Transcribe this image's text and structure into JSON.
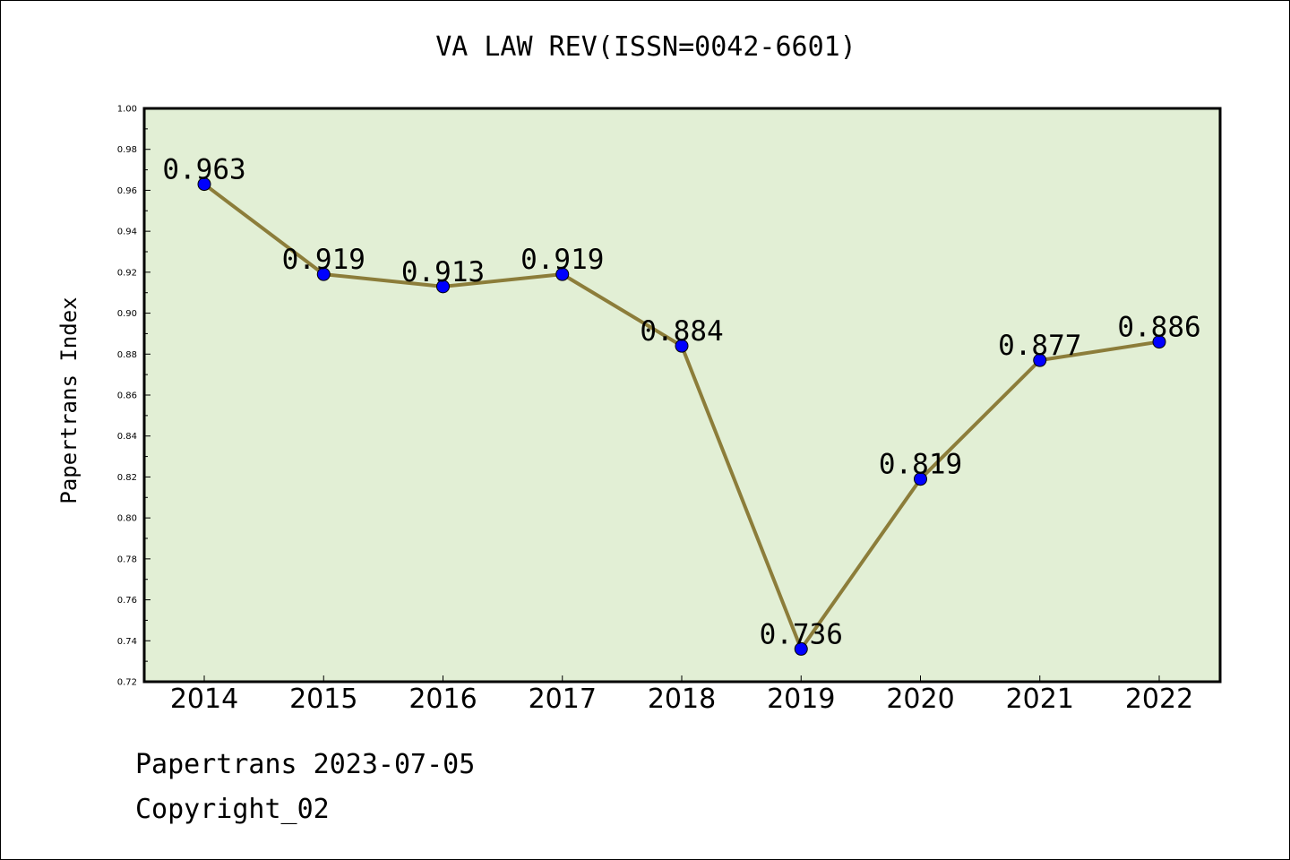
{
  "chart_data": {
    "type": "line",
    "title": "VA LAW REV(ISSN=0042-6601)",
    "ylabel": "Papertrans Index",
    "xlabel": "",
    "categories": [
      "2014",
      "2015",
      "2016",
      "2017",
      "2018",
      "2019",
      "2020",
      "2021",
      "2022"
    ],
    "values": [
      0.963,
      0.919,
      0.913,
      0.919,
      0.884,
      0.736,
      0.819,
      0.877,
      0.886
    ],
    "data_labels": [
      "0.963",
      "0.919",
      "0.913",
      "0.919",
      "0.884",
      "0.736",
      "0.819",
      "0.877",
      "0.886"
    ],
    "ylim": [
      0.72,
      1.0
    ],
    "yticks": [
      "0.72",
      "0.74",
      "0.76",
      "0.78",
      "0.80",
      "0.82",
      "0.84",
      "0.86",
      "0.88",
      "0.90",
      "0.92",
      "0.94",
      "0.96",
      "0.98",
      "1.00"
    ],
    "grid": false,
    "colors": {
      "plot_bg": "#e2efd5",
      "line": "#8c7d3a",
      "marker": "#0000ff"
    }
  },
  "footer": {
    "line1": "Papertrans 2023-07-05",
    "line2": "Copyright_02"
  }
}
